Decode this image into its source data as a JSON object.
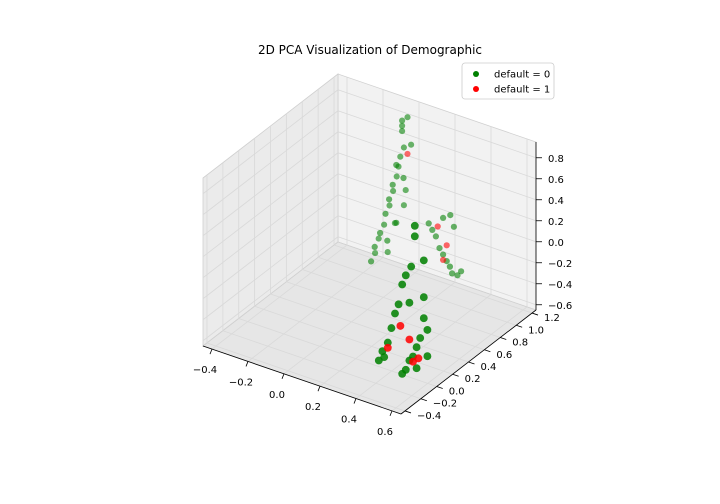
{
  "chart_data": {
    "type": "scatter",
    "projection": "3d",
    "title": "2D PCA Visualization of Demographic",
    "legend": {
      "placement": "top-right"
    },
    "grid": true,
    "colors": {
      "default_0": "#008000",
      "default_1": "#ff0000",
      "pane": "#f2f2f2",
      "grid": "#d9d9d9"
    },
    "x_axis": {
      "ticks": [
        -0.4,
        -0.2,
        0.0,
        0.2,
        0.4,
        0.6
      ],
      "tick_labels": [
        "−0.4",
        "−0.2",
        "0.0",
        "0.2",
        "0.4",
        "0.6"
      ],
      "lim": [
        -0.45,
        0.65
      ]
    },
    "y_axis": {
      "ticks": [
        -0.4,
        -0.2,
        0.0,
        0.2,
        0.4,
        0.6,
        0.8,
        1.0,
        1.2
      ],
      "tick_labels": [
        "−0.4",
        "−0.2",
        "0.0",
        "0.2",
        "0.4",
        "0.6",
        "0.8",
        "1.0",
        "1.2"
      ],
      "lim": [
        -0.45,
        1.25
      ]
    },
    "z_axis": {
      "ticks": [
        -0.6,
        -0.4,
        -0.2,
        0.0,
        0.2,
        0.4,
        0.6,
        0.8
      ],
      "tick_labels": [
        "−0.6",
        "−0.4",
        "−0.2",
        "0.0",
        "0.2",
        "0.4",
        "0.6",
        "0.8"
      ],
      "lim": [
        -0.65,
        0.95
      ]
    },
    "series": [
      {
        "name": "default = 0",
        "points": [
          [
            -0.05,
            1.15,
            0.8
          ],
          [
            -0.05,
            1.15,
            0.75
          ],
          [
            -0.05,
            1.15,
            0.7
          ],
          [
            -0.04,
            1.15,
            0.55
          ],
          [
            -0.06,
            1.15,
            0.45
          ],
          [
            -0.06,
            1.1,
            0.4
          ],
          [
            -0.07,
            1.15,
            0.35
          ],
          [
            -0.08,
            1.15,
            0.25
          ],
          [
            -0.08,
            1.1,
            0.2
          ],
          [
            -0.1,
            1.15,
            0.1
          ],
          [
            -0.1,
            1.1,
            0.05
          ],
          [
            -0.12,
            1.15,
            -0.05
          ],
          [
            -0.12,
            1.1,
            -0.1
          ],
          [
            -0.15,
            1.15,
            -0.25
          ],
          [
            -0.15,
            1.1,
            -0.3
          ],
          [
            -0.18,
            1.15,
            -0.4
          ],
          [
            -0.18,
            1.1,
            -0.45
          ],
          [
            -0.2,
            1.15,
            -0.55
          ],
          [
            -0.2,
            1.1,
            -0.6
          ],
          [
            -0.02,
            1.15,
            0.85
          ],
          [
            0.0,
            1.15,
            0.6
          ],
          [
            -0.02,
            1.1,
            0.3
          ],
          [
            -0.04,
            1.15,
            0.0
          ],
          [
            -0.06,
            1.1,
            -0.15
          ],
          [
            -0.09,
            1.15,
            -0.2
          ],
          [
            -0.11,
            1.1,
            -0.35
          ],
          [
            -0.13,
            1.15,
            -0.5
          ],
          [
            -0.03,
            1.15,
            0.15
          ],
          [
            0.12,
            1.1,
            -0.05
          ],
          [
            0.14,
            1.1,
            -0.1
          ],
          [
            0.16,
            1.1,
            -0.15
          ],
          [
            0.18,
            1.1,
            -0.25
          ],
          [
            0.2,
            1.1,
            -0.3
          ],
          [
            0.22,
            1.1,
            -0.35
          ],
          [
            0.25,
            1.1,
            -0.45
          ],
          [
            0.28,
            1.1,
            -0.45
          ],
          [
            0.3,
            1.1,
            -0.4
          ],
          [
            0.26,
            1.05,
            -0.35
          ],
          [
            0.24,
            1.1,
            0.1
          ],
          [
            0.26,
            1.1,
            0.0
          ],
          [
            0.2,
            1.1,
            0.05
          ],
          [
            0.55,
            -0.05,
            0.85
          ],
          [
            0.55,
            -0.05,
            0.75
          ],
          [
            0.53,
            -0.05,
            0.45
          ],
          [
            0.5,
            -0.05,
            0.35
          ],
          [
            0.48,
            -0.05,
            0.25
          ],
          [
            0.46,
            -0.05,
            0.05
          ],
          [
            0.44,
            -0.05,
            -0.05
          ],
          [
            0.42,
            -0.05,
            -0.2
          ],
          [
            0.4,
            -0.05,
            -0.35
          ],
          [
            0.38,
            -0.05,
            -0.5
          ],
          [
            0.6,
            -0.05,
            0.2
          ],
          [
            0.6,
            -0.05,
            0.0
          ],
          [
            0.58,
            -0.05,
            -0.2
          ],
          [
            0.56,
            -0.05,
            -0.3
          ],
          [
            0.54,
            -0.05,
            -0.4
          ],
          [
            0.52,
            -0.05,
            -0.45
          ],
          [
            0.5,
            -0.05,
            -0.55
          ],
          [
            0.48,
            -0.05,
            -0.6
          ],
          [
            0.56,
            -0.05,
            -0.5
          ],
          [
            0.62,
            -0.05,
            -0.1
          ],
          [
            0.35,
            -0.05,
            -0.55
          ],
          [
            0.37,
            -0.05,
            -0.45
          ],
          [
            0.6,
            -0.05,
            0.55
          ],
          [
            0.52,
            -0.05,
            0.1
          ],
          [
            0.62,
            -0.05,
            -0.35
          ]
        ]
      },
      {
        "name": "default = 1",
        "points": [
          [
            -0.02,
            1.15,
            0.5
          ],
          [
            0.22,
            1.1,
            -0.2
          ],
          [
            0.2,
            1.1,
            -0.35
          ],
          [
            0.17,
            1.1,
            -0.05
          ],
          [
            0.4,
            -0.05,
            -0.4
          ],
          [
            0.52,
            -0.05,
            -0.25
          ],
          [
            0.54,
            -0.05,
            -0.45
          ],
          [
            0.57,
            -0.05,
            -0.4
          ],
          [
            0.47,
            -0.05,
            -0.15
          ]
        ]
      }
    ]
  }
}
